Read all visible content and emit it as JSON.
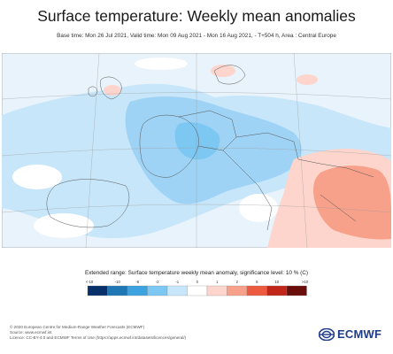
{
  "header": {
    "title": "Surface temperature: Weekly mean anomalies",
    "subtitle": "Base time: Mon 26 Jul 2021, Valid time: Mon 09 Aug 2021 - Mon 16 Aug 2021, - T+504 h, Area : Central Europe"
  },
  "legend": {
    "title": "Extended range: Surface temperature weekly mean anomaly, significance level: 10 % (C)",
    "ticks": [
      "<-10",
      "-10",
      "-6",
      "-2",
      "-1",
      "0",
      "1",
      "2",
      "6",
      "10",
      ">10"
    ],
    "colors": [
      "#08306b",
      "#1f77b4",
      "#3ca2e0",
      "#7cc8f3",
      "#c7e6fa",
      "#ffffff",
      "#fdd5cc",
      "#f7a08a",
      "#ec5b3f",
      "#c0271a",
      "#6a0e0b"
    ]
  },
  "footer": {
    "line1": "© 2020 European Centre for Medium-Range Weather Forecasts (ECMWF)",
    "line2": "Source: www.ecmwf.int",
    "line3": "Licence: CC-BY-4.0 and ECMWF Terms of Use (https://apps.ecmwf.int/datasets/licences/general/)"
  },
  "logo": {
    "text": "ECMWF"
  },
  "map": {
    "area": "Central Europe",
    "colors": {
      "sea": "#e8f3fb",
      "cold_light": "#c7e6fa",
      "cold_mid": "#9fd3f5",
      "cold_strong": "#7cc8f3",
      "warm_light": "#fdd5cc",
      "warm_mid": "#f7a08a",
      "neutral": "#ffffff",
      "border": "#555555",
      "grid": "#9a9a9a"
    }
  }
}
